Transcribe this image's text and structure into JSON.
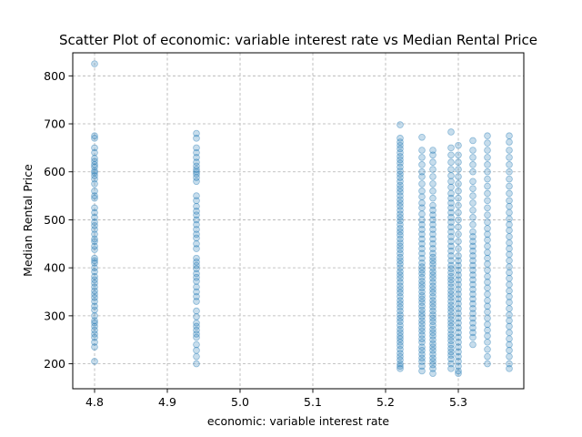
{
  "chart_data": {
    "type": "scatter",
    "title": "Scatter Plot of economic: variable interest rate vs Median Rental Price",
    "xlabel": "economic: variable interest rate",
    "ylabel": "Median Rental Price",
    "xlim": [
      4.77,
      5.39
    ],
    "ylim": [
      148,
      848
    ],
    "xticks": [
      4.8,
      4.9,
      5.0,
      5.1,
      5.2,
      5.3
    ],
    "xtick_labels": [
      "4.8",
      "4.9",
      "5.0",
      "5.1",
      "5.2",
      "5.3"
    ],
    "yticks": [
      200,
      300,
      400,
      500,
      600,
      700,
      800
    ],
    "ytick_labels": [
      "200",
      "300",
      "400",
      "500",
      "600",
      "700",
      "800"
    ],
    "grid": true,
    "point_color": "#1f77b4",
    "point_alpha": 0.25,
    "points": [
      {
        "x": 4.8,
        "y": [
          205,
          235,
          245,
          255,
          262,
          270,
          278,
          285,
          290,
          300,
          312,
          320,
          330,
          338,
          345,
          352,
          360,
          368,
          375,
          382,
          392,
          400,
          410,
          415,
          420,
          438,
          445,
          455,
          460,
          470,
          480,
          488,
          495,
          505,
          515,
          525,
          545,
          550,
          560,
          575,
          585,
          592,
          598,
          602,
          610,
          615,
          622,
          628,
          640,
          650,
          670,
          675,
          825
        ]
      },
      {
        "x": 4.94,
        "y": [
          200,
          215,
          228,
          240,
          255,
          262,
          270,
          278,
          285,
          298,
          310,
          330,
          340,
          350,
          360,
          372,
          380,
          388,
          398,
          405,
          412,
          420,
          440,
          450,
          462,
          470,
          480,
          490,
          500,
          510,
          518,
          528,
          540,
          550,
          580,
          588,
          595,
          600,
          605,
          612,
          620,
          630,
          640,
          650,
          670,
          680
        ]
      },
      {
        "x": 5.22,
        "y": [
          190,
          195,
          200,
          208,
          215,
          222,
          230,
          238,
          245,
          252,
          258,
          265,
          272,
          280,
          288,
          295,
          302,
          310,
          318,
          325,
          332,
          340,
          348,
          355,
          362,
          370,
          378,
          385,
          392,
          400,
          408,
          415,
          422,
          430,
          438,
          445,
          452,
          460,
          468,
          475,
          482,
          490,
          498,
          505,
          512,
          520,
          528,
          535,
          542,
          550,
          558,
          565,
          572,
          580,
          588,
          595,
          602,
          610,
          618,
          625,
          632,
          640,
          648,
          655,
          662,
          670,
          698
        ]
      },
      {
        "x": 5.25,
        "y": [
          185,
          195,
          205,
          212,
          220,
          228,
          235,
          245,
          252,
          260,
          268,
          275,
          283,
          290,
          298,
          305,
          312,
          320,
          328,
          335,
          342,
          350,
          358,
          365,
          372,
          380,
          388,
          395,
          402,
          410,
          420,
          430,
          440,
          450,
          460,
          470,
          480,
          490,
          500,
          512,
          525,
          535,
          548,
          560,
          575,
          590,
          600,
          615,
          630,
          645,
          672
        ]
      },
      {
        "x": 5.265,
        "y": [
          180,
          190,
          198,
          205,
          212,
          220,
          228,
          235,
          242,
          250,
          258,
          265,
          272,
          280,
          288,
          295,
          302,
          310,
          318,
          325,
          332,
          340,
          348,
          355,
          362,
          370,
          378,
          385,
          392,
          400,
          408,
          415,
          422,
          430,
          440,
          450,
          460,
          470,
          480,
          490,
          500,
          510,
          520,
          530,
          545,
          560,
          575,
          590,
          605,
          620,
          635,
          645
        ]
      },
      {
        "x": 5.29,
        "y": [
          190,
          200,
          210,
          218,
          225,
          232,
          240,
          248,
          255,
          262,
          270,
          278,
          285,
          292,
          300,
          308,
          315,
          322,
          330,
          338,
          345,
          352,
          360,
          368,
          375,
          382,
          390,
          398,
          405,
          415,
          425,
          435,
          445,
          455,
          465,
          475,
          485,
          495,
          505,
          515,
          525,
          535,
          545,
          555,
          568,
          580,
          592,
          605,
          620,
          635,
          650,
          683
        ]
      },
      {
        "x": 5.3,
        "y": [
          180,
          185,
          195,
          205,
          215,
          225,
          235,
          245,
          255,
          265,
          275,
          285,
          295,
          305,
          315,
          325,
          335,
          345,
          355,
          365,
          375,
          385,
          395,
          405,
          415,
          425,
          440,
          455,
          470,
          485,
          500,
          515,
          530,
          545,
          560,
          575,
          590,
          605,
          620,
          635,
          655
        ]
      },
      {
        "x": 5.32,
        "y": [
          240,
          255,
          265,
          275,
          285,
          295,
          305,
          315,
          325,
          335,
          345,
          355,
          365,
          375,
          385,
          395,
          405,
          415,
          425,
          435,
          445,
          455,
          465,
          475,
          490,
          505,
          520,
          535,
          550,
          565,
          580,
          600,
          615,
          630,
          645,
          665
        ]
      },
      {
        "x": 5.34,
        "y": [
          200,
          215,
          230,
          245,
          258,
          270,
          282,
          295,
          308,
          320,
          332,
          345,
          358,
          370,
          382,
          395,
          408,
          420,
          432,
          445,
          458,
          470,
          482,
          495,
          510,
          525,
          540,
          555,
          570,
          585,
          600,
          615,
          630,
          645,
          660,
          675
        ]
      },
      {
        "x": 5.37,
        "y": [
          190,
          200,
          215,
          228,
          240,
          252,
          265,
          278,
          290,
          302,
          315,
          328,
          340,
          352,
          365,
          378,
          390,
          402,
          415,
          428,
          440,
          452,
          465,
          478,
          490,
          502,
          515,
          528,
          540,
          555,
          570,
          585,
          600,
          615,
          630,
          645,
          662,
          675
        ]
      }
    ]
  }
}
